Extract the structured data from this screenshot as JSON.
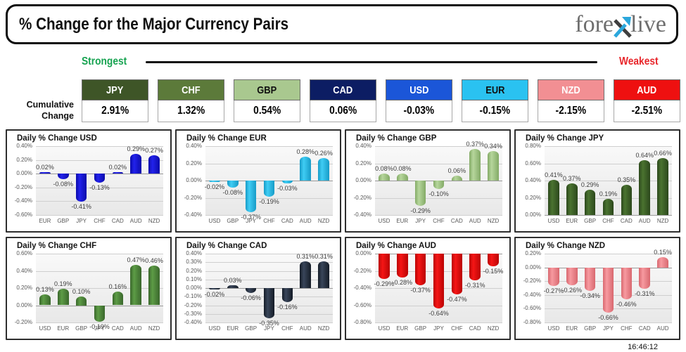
{
  "header": {
    "title": "% Change for the Major Currency Pairs",
    "logo": {
      "part1": "fore",
      "part2": "live",
      "x_accent_color": "#2ba7dc",
      "text_color": "#6e6e6e"
    }
  },
  "ranking": {
    "strongest_label": "Strongest",
    "strongest_color": "#17a351",
    "weakest_label": "Weakest",
    "weakest_color": "#e8262b",
    "row_label_line1": "Cumulative",
    "row_label_line2": "Change",
    "items": [
      {
        "currency": "JPY",
        "value": "2.91%",
        "color": "#3e5527",
        "text_color": "#ffffff"
      },
      {
        "currency": "CHF",
        "value": "1.32%",
        "color": "#5c7a3a",
        "text_color": "#ffffff"
      },
      {
        "currency": "GBP",
        "value": "0.54%",
        "color": "#a9c88f",
        "text_color": "#101010"
      },
      {
        "currency": "CAD",
        "value": "0.06%",
        "color": "#0c1d63",
        "text_color": "#ffffff"
      },
      {
        "currency": "USD",
        "value": "-0.03%",
        "color": "#1b56d8",
        "text_color": "#ffffff"
      },
      {
        "currency": "EUR",
        "value": "-0.15%",
        "color": "#2ac2f1",
        "text_color": "#101010"
      },
      {
        "currency": "NZD",
        "value": "-2.15%",
        "color": "#f28f93",
        "text_color": "#ffffff"
      },
      {
        "currency": "AUD",
        "value": "-2.51%",
        "color": "#ee1010",
        "text_color": "#ffffff"
      }
    ]
  },
  "footer": {
    "timestamp": "16:46:12"
  },
  "chart_data": [
    {
      "id": "USD",
      "type": "bar",
      "title": "Daily % Change USD",
      "categories": [
        "EUR",
        "GBP",
        "JPY",
        "CHF",
        "CAD",
        "AUD",
        "NZD"
      ],
      "values": [
        0.02,
        -0.08,
        -0.41,
        -0.13,
        0.02,
        0.29,
        0.27
      ],
      "bar_labels": [
        "0.02%",
        "-0.08%",
        "-0.41%",
        "-0.13%",
        "0.02%",
        "0.29%",
        "0.27%"
      ],
      "yticks": [
        "0.40%",
        "0.20%",
        "0.00%",
        "-0.20%",
        "-0.40%",
        "-0.60%"
      ],
      "ylim": [
        -0.6,
        0.4
      ],
      "grid": true,
      "legend": false,
      "bar_color": "#2222ec",
      "bar_edge": "#0b0baa"
    },
    {
      "id": "EUR",
      "type": "bar",
      "title": "Daily % Change EUR",
      "categories": [
        "USD",
        "GBP",
        "JPY",
        "CHF",
        "CAD",
        "AUD",
        "NZD"
      ],
      "values": [
        -0.02,
        -0.08,
        -0.37,
        -0.19,
        -0.03,
        0.28,
        0.26
      ],
      "bar_labels": [
        "-0.02%",
        "-0.08%",
        "-0.37%",
        "-0.19%",
        "-0.03%",
        "0.28%",
        "0.26%"
      ],
      "yticks": [
        "0.40%",
        "0.20%",
        "0.00%",
        "-0.20%",
        "-0.40%"
      ],
      "ylim": [
        -0.4,
        0.4
      ],
      "grid": true,
      "legend": false,
      "bar_color": "#3fcdf4",
      "bar_edge": "#179bc7"
    },
    {
      "id": "GBP",
      "type": "bar",
      "title": "Daily % Change GBP",
      "categories": [
        "USD",
        "EUR",
        "JPY",
        "CHF",
        "CAD",
        "AUD",
        "NZD"
      ],
      "values": [
        0.08,
        0.08,
        -0.29,
        -0.1,
        0.06,
        0.37,
        0.34
      ],
      "bar_labels": [
        "0.08%",
        "0.08%",
        "-0.29%",
        "-0.10%",
        "0.06%",
        "0.37%",
        "0.34%"
      ],
      "yticks": [
        "0.40%",
        "0.20%",
        "0.00%",
        "-0.20%",
        "-0.40%"
      ],
      "ylim": [
        -0.4,
        0.4
      ],
      "grid": true,
      "legend": false,
      "bar_color": "#b6d69c",
      "bar_edge": "#83aa66"
    },
    {
      "id": "JPY",
      "type": "bar",
      "title": "Daily % Change JPY",
      "categories": [
        "USD",
        "EUR",
        "GBP",
        "CHF",
        "CAD",
        "AUD",
        "NZD"
      ],
      "values": [
        0.41,
        0.37,
        0.29,
        0.19,
        0.35,
        0.64,
        0.66
      ],
      "bar_labels": [
        "0.41%",
        "0.37%",
        "0.29%",
        "0.19%",
        "0.35%",
        "0.64%",
        "0.66%"
      ],
      "yticks": [
        "0.80%",
        "0.60%",
        "0.40%",
        "0.20%",
        "0.00%"
      ],
      "ylim": [
        0,
        0.8
      ],
      "grid": true,
      "legend": false,
      "bar_color": "#4a7330",
      "bar_edge": "#2c481c"
    },
    {
      "id": "CHF",
      "type": "bar",
      "title": "Daily % Change CHF",
      "categories": [
        "USD",
        "EUR",
        "GBP",
        "JPY",
        "CAD",
        "AUD",
        "NZD"
      ],
      "values": [
        0.13,
        0.19,
        0.1,
        -0.19,
        0.16,
        0.47,
        0.46
      ],
      "bar_labels": [
        "0.13%",
        "0.19%",
        "0.10%",
        "-0.19%",
        "0.16%",
        "0.47%",
        "0.46%"
      ],
      "yticks": [
        "0.60%",
        "0.40%",
        "0.20%",
        "0.00%",
        "-0.20%"
      ],
      "ylim": [
        -0.2,
        0.6
      ],
      "grid": true,
      "legend": false,
      "bar_color": "#5d9c46",
      "bar_edge": "#3a672c"
    },
    {
      "id": "CAD",
      "type": "bar",
      "title": "Daily % Change CAD",
      "categories": [
        "USD",
        "EUR",
        "GBP",
        "JPY",
        "CHF",
        "AUD",
        "NZD"
      ],
      "values": [
        -0.02,
        0.03,
        -0.06,
        -0.35,
        -0.16,
        0.31,
        0.31
      ],
      "bar_labels": [
        "-0.02%",
        "0.03%",
        "-0.06%",
        "-0.35%",
        "-0.16%",
        "0.31%",
        "0.31%"
      ],
      "yticks": [
        "0.40%",
        "0.30%",
        "0.20%",
        "0.10%",
        "0.00%",
        "-0.10%",
        "-0.20%",
        "-0.30%",
        "-0.40%"
      ],
      "ylim": [
        -0.4,
        0.4
      ],
      "grid": true,
      "legend": false,
      "bar_color": "#39465a",
      "bar_edge": "#151c27"
    },
    {
      "id": "AUD",
      "type": "bar",
      "title": "Daily % Change AUD",
      "categories": [
        "USD",
        "EUR",
        "GBP",
        "JPY",
        "CHF",
        "CAD",
        "NZD"
      ],
      "values": [
        -0.29,
        -0.28,
        -0.37,
        -0.64,
        -0.47,
        -0.31,
        -0.15
      ],
      "bar_labels": [
        "-0.29%",
        "-0.28%",
        "-0.37%",
        "-0.64%",
        "-0.47%",
        "-0.31%",
        "-0.15%"
      ],
      "yticks": [
        "0.00%",
        "-0.20%",
        "-0.40%",
        "-0.60%",
        "-0.80%"
      ],
      "ylim": [
        -0.8,
        0
      ],
      "grid": true,
      "legend": false,
      "bar_color": "#f51616",
      "bar_edge": "#ba0404"
    },
    {
      "id": "NZD",
      "type": "bar",
      "title": "Daily % Change NZD",
      "categories": [
        "USD",
        "EUR",
        "GBP",
        "JPY",
        "CHF",
        "CAD",
        "AUD"
      ],
      "values": [
        -0.27,
        -0.26,
        -0.34,
        -0.66,
        -0.46,
        -0.31,
        0.15
      ],
      "bar_labels": [
        "-0.27%",
        "-0.26%",
        "-0.34%",
        "-0.66%",
        "-0.46%",
        "-0.31%",
        "0.15%"
      ],
      "yticks": [
        "0.20%",
        "0.00%",
        "-0.20%",
        "-0.40%",
        "-0.60%",
        "-0.80%"
      ],
      "ylim": [
        -0.8,
        0.2
      ],
      "grid": true,
      "legend": false,
      "bar_color": "#f79aa0",
      "bar_edge": "#d8686f"
    }
  ]
}
